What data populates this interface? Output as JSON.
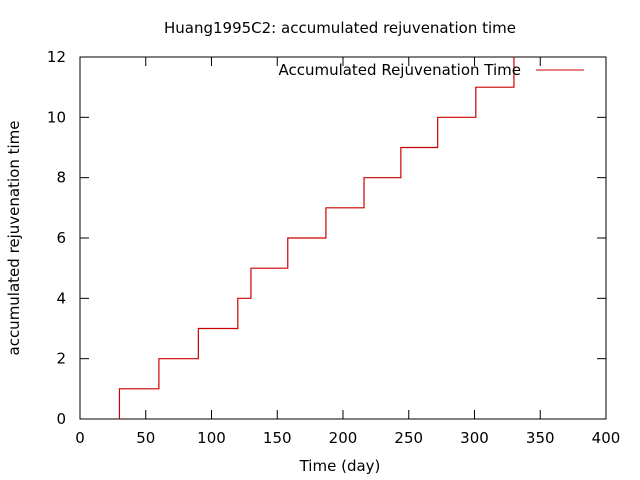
{
  "chart_data": {
    "type": "line",
    "title": "Huang1995C2: accumulated rejuvenation time",
    "xlabel": "Time (day)",
    "ylabel": "accumulated rejuvenation time",
    "xlim": [
      0,
      400
    ],
    "ylim": [
      0,
      12
    ],
    "xticks": [
      "0",
      "50",
      "100",
      "150",
      "200",
      "250",
      "300",
      "350",
      "400"
    ],
    "yticks": [
      "0",
      "2",
      "4",
      "6",
      "8",
      "10",
      "12"
    ],
    "grid": false,
    "legend_position": "top-right",
    "series": [
      {
        "name": "Accumulated Rejuvenation Time",
        "color": "#cc0000",
        "step": "post",
        "x": [
          30,
          60,
          90,
          120,
          130,
          158,
          187,
          216,
          244,
          272,
          301,
          330
        ],
        "y": [
          1,
          2,
          3,
          4,
          5,
          6,
          7,
          8,
          9,
          10,
          11,
          12
        ]
      }
    ]
  }
}
